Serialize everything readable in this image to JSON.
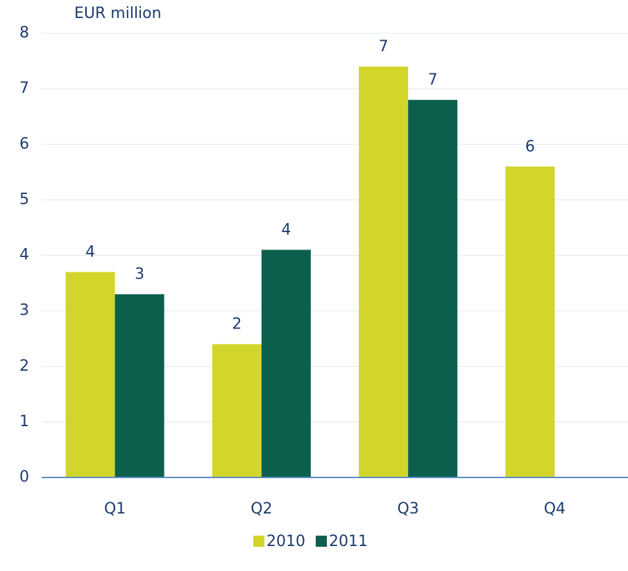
{
  "chart_data": {
    "type": "bar",
    "title": "EUR million",
    "categories": [
      "Q1",
      "Q2",
      "Q3",
      "Q4"
    ],
    "series": [
      {
        "name": "2010",
        "color": "#d2d52a",
        "values": [
          3.7,
          2.4,
          7.4,
          5.6
        ],
        "value_labels": [
          "4",
          "2",
          "7",
          "6"
        ]
      },
      {
        "name": "2011",
        "color": "#0d5f4d",
        "values": [
          3.3,
          4.1,
          6.8,
          null
        ],
        "value_labels": [
          "3",
          "4",
          "7",
          null
        ]
      }
    ],
    "ylim": [
      0,
      8
    ],
    "yticks": [
      0,
      1,
      2,
      3,
      4,
      5,
      6,
      7,
      8
    ],
    "grid": true,
    "legend": "bottom"
  }
}
